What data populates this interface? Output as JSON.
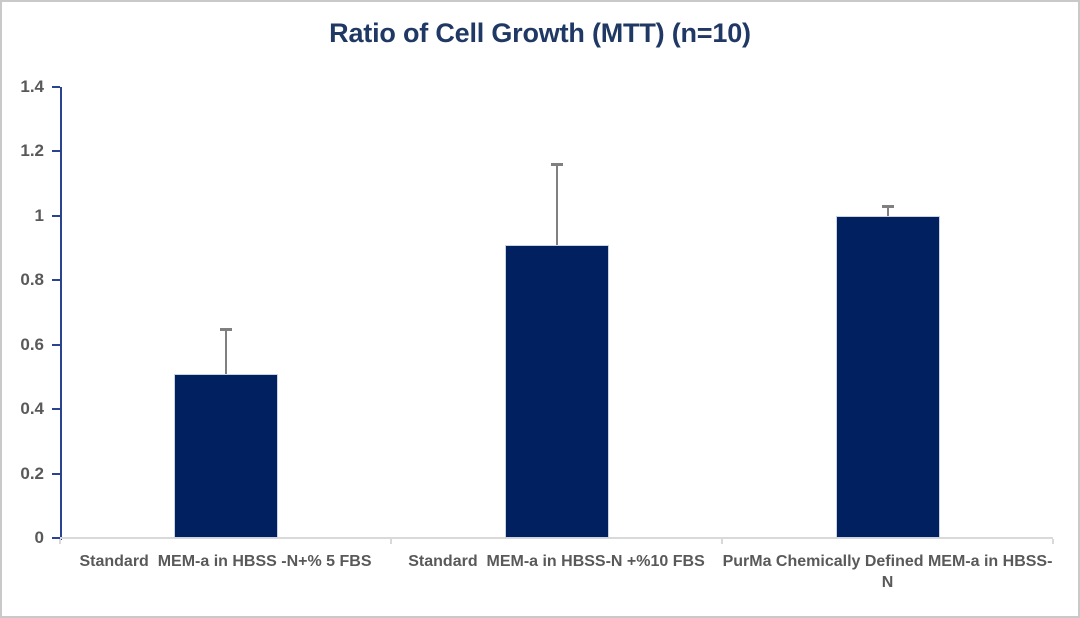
{
  "chart_data": {
    "type": "bar",
    "title": "Ratio of Cell Growth (MTT) (n=10)",
    "categories": [
      "Standard  MEM-a in HBSS -N+% 5 FBS",
      "Standard  MEM-a in HBSS-N +%10 FBS",
      "PurMa Chemically Defined MEM-a in HBSS-N"
    ],
    "values": [
      0.51,
      0.91,
      1.0
    ],
    "error_plus": [
      0.14,
      0.25,
      0.03
    ],
    "xlabel": "",
    "ylabel": "",
    "ylim": [
      0,
      1.4
    ],
    "ytick_step": 0.2,
    "ytick_labels": [
      "0",
      "0.2",
      "0.4",
      "0.6",
      "0.8",
      "1",
      "1.2",
      "1.4"
    ],
    "grid": false,
    "legend": false
  },
  "colors": {
    "bar": "#002060",
    "title": "#1f3864",
    "axis_label": "#595959",
    "value_axis_line": "#2a4390",
    "category_axis_line": "#d9d9d9",
    "error_bar": "#808080",
    "frame_border": "#c9c9c9",
    "background": "#ffffff"
  }
}
